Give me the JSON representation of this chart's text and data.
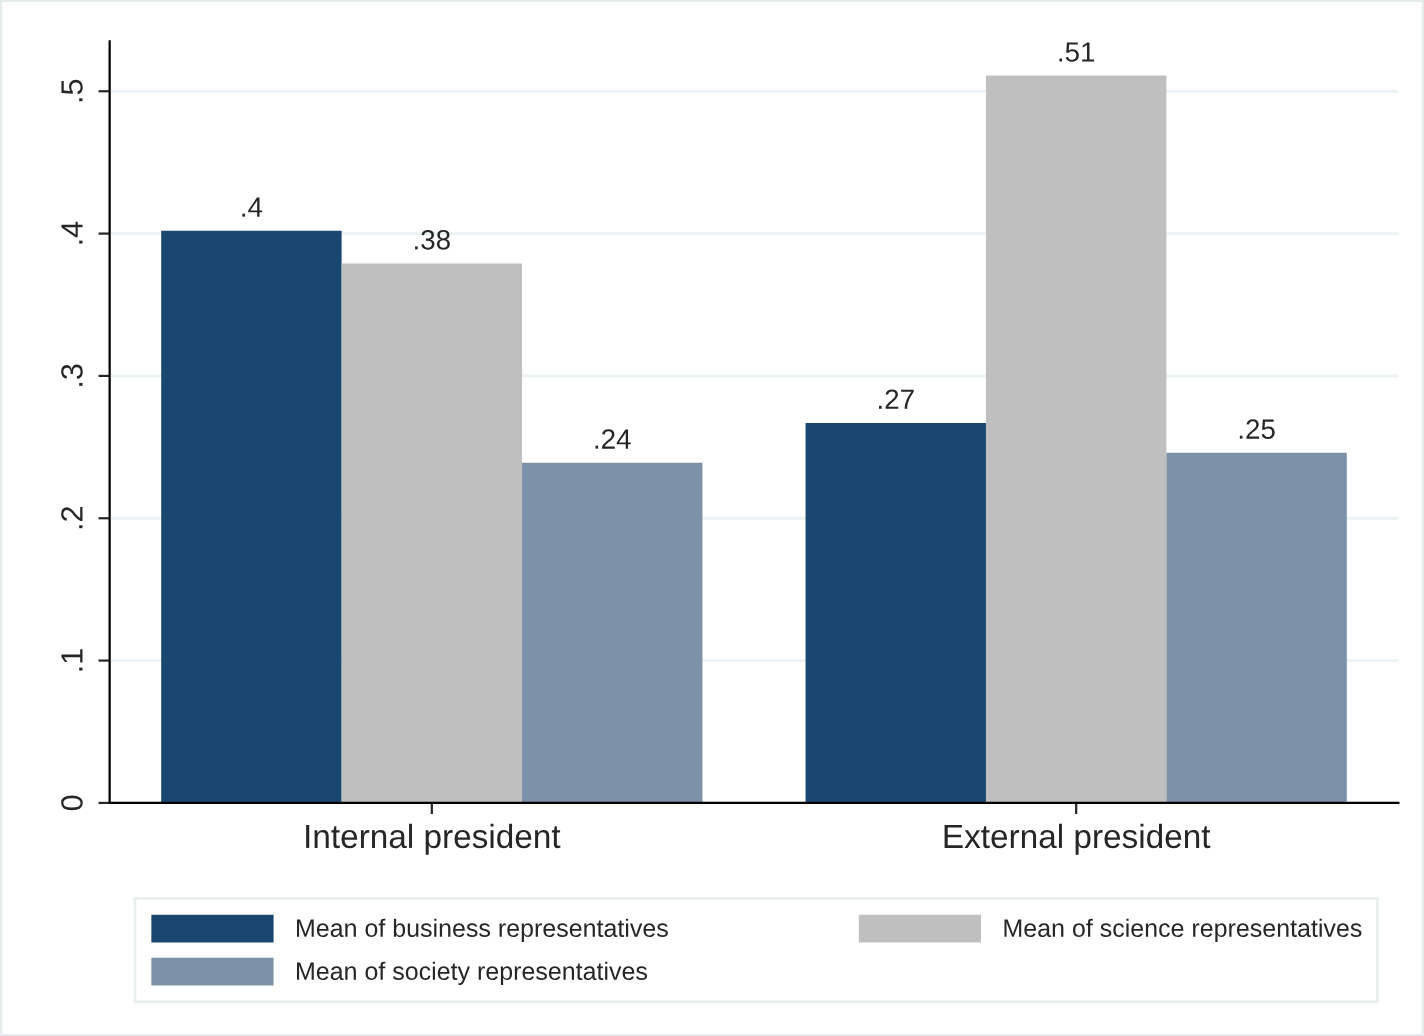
{
  "chart_data": {
    "type": "bar",
    "categories": [
      "Internal president",
      "External president"
    ],
    "series": [
      {
        "name": "Mean of business representatives",
        "color": "#1a476f",
        "values": [
          0.402,
          0.267
        ],
        "value_labels": [
          ".4",
          ".27"
        ]
      },
      {
        "name": "Mean of science representatives",
        "color": "#bfbfbf",
        "values": [
          0.379,
          0.511
        ],
        "value_labels": [
          ".38",
          ".51"
        ]
      },
      {
        "name": "Mean of society representatives",
        "color": "#7b92a8",
        "values": [
          0.239,
          0.246
        ],
        "value_labels": [
          ".24",
          ".25"
        ]
      }
    ],
    "ylim": [
      0,
      0.535
    ],
    "yticks": [
      {
        "value": 0,
        "label": "0"
      },
      {
        "value": 0.1,
        "label": ".1"
      },
      {
        "value": 0.2,
        "label": ".2"
      },
      {
        "value": 0.3,
        "label": ".3"
      },
      {
        "value": 0.4,
        "label": ".4"
      },
      {
        "value": 0.5,
        "label": ".5"
      }
    ],
    "grid": "y",
    "legend": "bottom"
  }
}
